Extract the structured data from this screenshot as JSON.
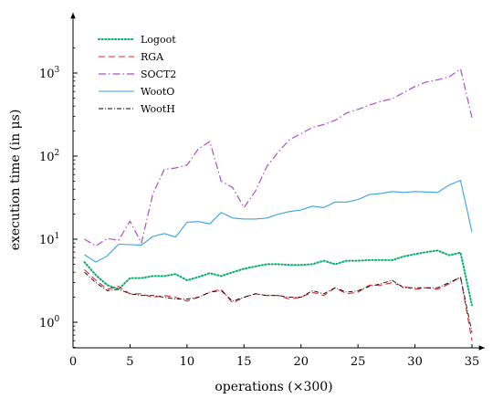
{
  "chart_data": {
    "type": "line",
    "xlabel": "operations (×300)",
    "ylabel": "execution time (in μs)",
    "y_scale": "log",
    "xlim": [
      0,
      35
    ],
    "ylim": [
      0.5,
      2500
    ],
    "x_ticks": [
      0,
      5,
      10,
      15,
      20,
      25,
      30,
      35
    ],
    "x_tick_labels": [
      "0",
      "5",
      "10",
      "15",
      "20",
      "25",
      "30",
      "35"
    ],
    "y_ticks": [
      1,
      10,
      100,
      1000
    ],
    "y_tick_labels": [
      "10",
      "10",
      "10",
      "10"
    ],
    "y_tick_exponents": [
      "0",
      "1",
      "2",
      "3"
    ],
    "grid": false,
    "legend_position": "top-left",
    "x": [
      1,
      2,
      3,
      4,
      5,
      6,
      7,
      8,
      9,
      10,
      11,
      12,
      13,
      14,
      15,
      16,
      17,
      18,
      19,
      20,
      21,
      22,
      23,
      24,
      25,
      26,
      27,
      28,
      29,
      30,
      31,
      32,
      33,
      34,
      35
    ],
    "series": [
      {
        "name": "Logoot",
        "color": "#00b06a",
        "style": "dotted",
        "values": [
          5.3,
          3.7,
          2.8,
          2.5,
          3.4,
          3.4,
          3.6,
          3.6,
          3.8,
          3.2,
          3.5,
          3.9,
          3.6,
          4.0,
          4.4,
          4.7,
          5.0,
          5.0,
          4.9,
          4.9,
          5.0,
          5.5,
          5.0,
          5.5,
          5.5,
          5.6,
          5.6,
          5.6,
          6.2,
          6.6,
          7.0,
          7.3,
          6.4,
          6.9,
          1.6
        ]
      },
      {
        "name": "RGA",
        "color": "#e3262b",
        "style": "dashed",
        "values": [
          4.3,
          3.2,
          2.5,
          2.7,
          2.2,
          2.2,
          2.0,
          2.1,
          2.0,
          1.8,
          2.0,
          2.3,
          2.5,
          1.7,
          2.0,
          2.2,
          2.1,
          2.1,
          1.9,
          2.0,
          2.3,
          2.1,
          2.6,
          2.2,
          2.3,
          2.8,
          2.8,
          3.0,
          2.7,
          2.5,
          2.6,
          2.5,
          2.9,
          3.5,
          0.6
        ]
      },
      {
        "name": "SOCT2",
        "color": "#a94fc8",
        "style": "dashdot",
        "values": [
          10,
          8.3,
          10.2,
          9.7,
          16.5,
          9.0,
          35,
          69,
          72,
          78,
          122,
          150,
          50,
          42,
          24,
          38,
          75,
          112,
          158,
          186,
          222,
          240,
          270,
          330,
          365,
          410,
          455,
          490,
          580,
          690,
          780,
          830,
          900,
          1120,
          290
        ]
      },
      {
        "name": "WootO",
        "color": "#3aa2de",
        "style": "solid",
        "values": [
          6.5,
          5.3,
          6.3,
          8.7,
          8.6,
          8.5,
          10.8,
          11.7,
          10.6,
          16.0,
          16.3,
          15.3,
          21.0,
          18.0,
          17.5,
          17.5,
          18.0,
          20.0,
          21.5,
          22.5,
          25.0,
          24.0,
          28.0,
          28.0,
          30.0,
          34.5,
          35.5,
          37.5,
          36.5,
          37.5,
          37.0,
          36.5,
          45.0,
          51.0,
          12.2
        ]
      },
      {
        "name": "WootH",
        "color": "#000000",
        "style": "dashdot-thin",
        "values": [
          4.0,
          3.0,
          2.4,
          2.5,
          2.2,
          2.1,
          2.1,
          2.0,
          1.9,
          1.9,
          2.0,
          2.3,
          2.4,
          1.8,
          2.0,
          2.2,
          2.1,
          2.1,
          2.0,
          2.0,
          2.4,
          2.2,
          2.6,
          2.3,
          2.4,
          2.7,
          2.9,
          3.2,
          2.6,
          2.6,
          2.6,
          2.6,
          3.0,
          3.5,
          0.75
        ]
      }
    ]
  }
}
